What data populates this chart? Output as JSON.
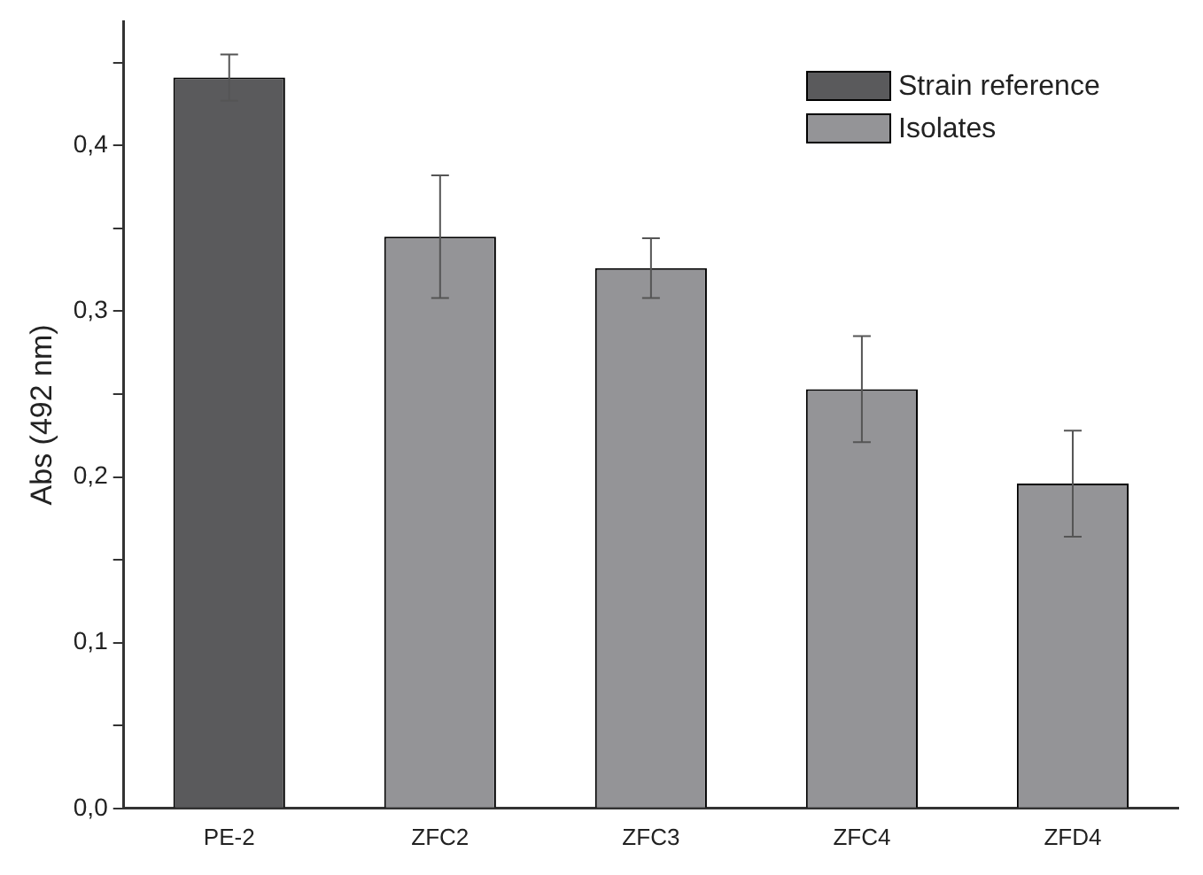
{
  "chart_data": {
    "type": "bar",
    "ylabel": "Abs (492 nm)",
    "categories": [
      "PE-2",
      "ZFC2",
      "ZFC3",
      "ZFC4",
      "ZFD4"
    ],
    "series": [
      {
        "name": "Strain reference",
        "color": "#5a5a5c",
        "values": [
          0.441,
          null,
          null,
          null,
          null
        ],
        "errors": [
          0.014,
          null,
          null,
          null,
          null
        ]
      },
      {
        "name": "Isolates",
        "color": "#949497",
        "values": [
          null,
          0.345,
          0.326,
          0.253,
          0.196
        ],
        "errors": [
          null,
          0.037,
          0.018,
          0.032,
          0.032
        ]
      }
    ],
    "ylim": [
      0,
      0.475
    ],
    "yticks": [
      {
        "value": 0,
        "label": "0,0"
      },
      {
        "value": 0.05,
        "label": null
      },
      {
        "value": 0.1,
        "label": "0,1"
      },
      {
        "value": 0.15,
        "label": null
      },
      {
        "value": 0.2,
        "label": "0,2"
      },
      {
        "value": 0.25,
        "label": null
      },
      {
        "value": 0.3,
        "label": "0,3"
      },
      {
        "value": 0.35,
        "label": null
      },
      {
        "value": 0.4,
        "label": "0,4"
      },
      {
        "value": 0.45,
        "label": null
      }
    ],
    "grid": false,
    "legend": "top right"
  }
}
